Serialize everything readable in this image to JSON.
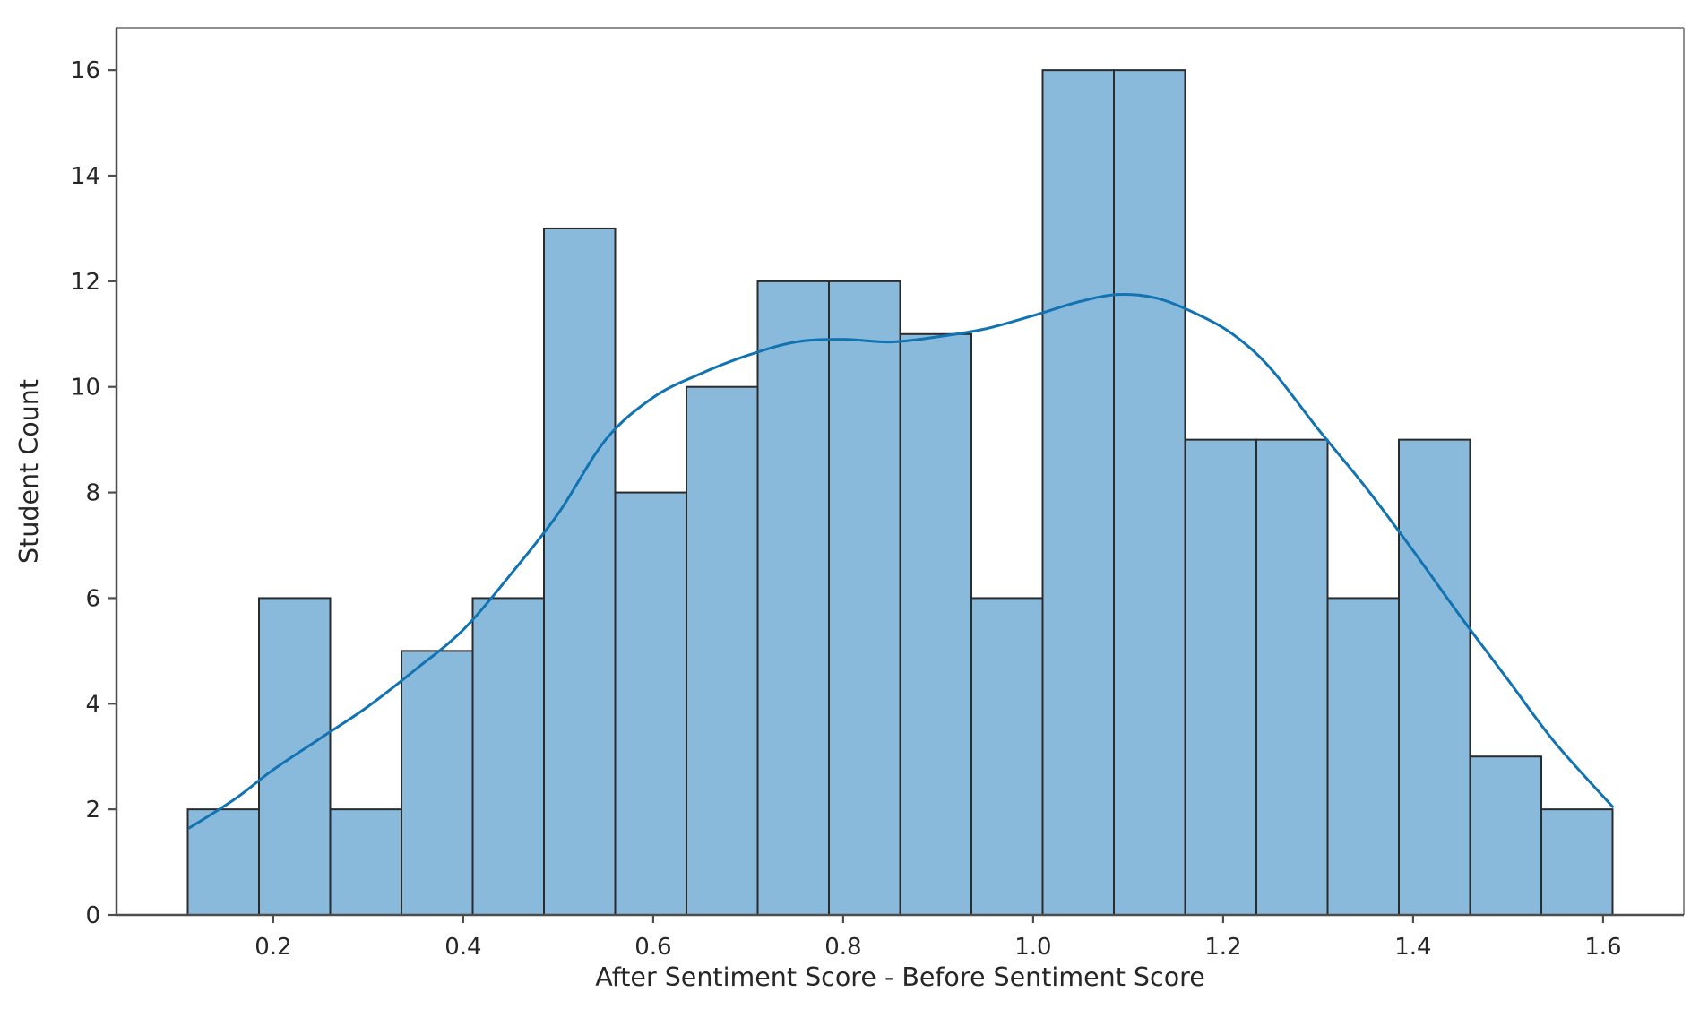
{
  "chart_data": {
    "type": "bar",
    "subtype": "histogram_with_kde",
    "title": "",
    "xlabel": "After Sentiment Score - Before Sentiment Score",
    "ylabel": "Student Count",
    "bin_edges": [
      0.11,
      0.185,
      0.26,
      0.335,
      0.41,
      0.485,
      0.56,
      0.635,
      0.71,
      0.785,
      0.86,
      0.935,
      1.01,
      1.085,
      1.16,
      1.235,
      1.31,
      1.385,
      1.46,
      1.535,
      1.61
    ],
    "counts": [
      2,
      6,
      2,
      5,
      6,
      13,
      8,
      10,
      12,
      12,
      11,
      6,
      16,
      16,
      9,
      9,
      6,
      9,
      3,
      2
    ],
    "kde_line": {
      "x": [
        0.112,
        0.16,
        0.2,
        0.25,
        0.3,
        0.35,
        0.4,
        0.45,
        0.5,
        0.55,
        0.6,
        0.65,
        0.7,
        0.75,
        0.8,
        0.85,
        0.9,
        0.95,
        1.0,
        1.05,
        1.09,
        1.13,
        1.17,
        1.21,
        1.25,
        1.3,
        1.35,
        1.4,
        1.45,
        1.5,
        1.55,
        1.61
      ],
      "y": [
        1.65,
        2.2,
        2.75,
        3.35,
        3.95,
        4.65,
        5.4,
        6.45,
        7.6,
        9.0,
        9.8,
        10.25,
        10.6,
        10.85,
        10.9,
        10.85,
        10.95,
        11.1,
        11.35,
        11.62,
        11.75,
        11.68,
        11.4,
        11.0,
        10.35,
        9.2,
        8.1,
        6.9,
        5.65,
        4.45,
        3.25,
        2.05
      ]
    },
    "x_ticks": [
      0.2,
      0.4,
      0.6,
      0.8,
      1.0,
      1.2,
      1.4,
      1.6
    ],
    "y_ticks": [
      0,
      2,
      4,
      6,
      8,
      10,
      12,
      14,
      16
    ],
    "xlim": [
      0.035,
      1.685
    ],
    "ylim": [
      0,
      16.8
    ],
    "grid": false,
    "legend": null,
    "colors": {
      "bar_fill": "#89badb",
      "bar_edge": "#2b2b2b",
      "kde_line": "#1273b2",
      "spine_dark": "#4d4d4d",
      "spine_light": "#8f8f8f",
      "tick_mark": "#4d4d4d",
      "text": "#262626",
      "background": "#ffffff"
    }
  }
}
